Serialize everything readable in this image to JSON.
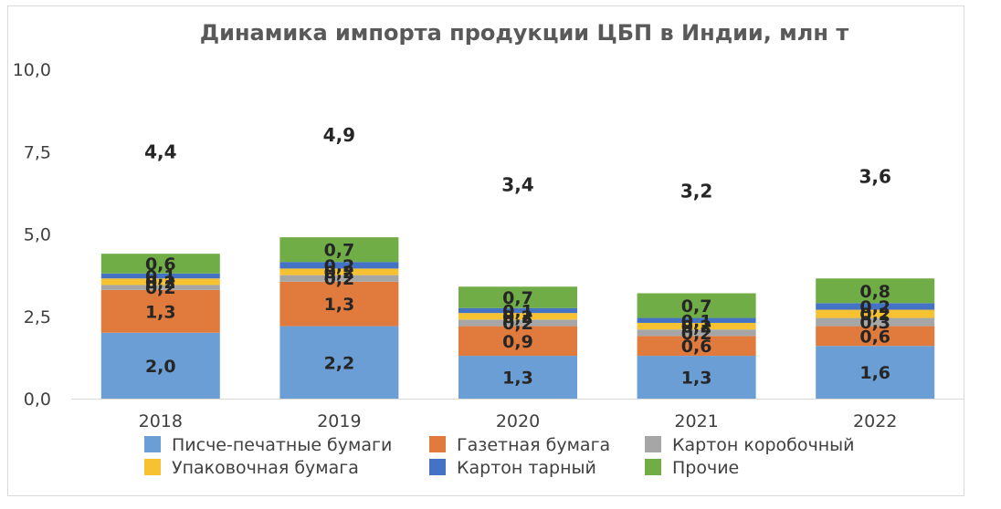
{
  "chart_data": {
    "type": "bar",
    "stacked": true,
    "title": "Динамика импорта продукции ЦБП в Индии, млн т",
    "xlabel": "",
    "ylabel": "",
    "categories": [
      "2018",
      "2019",
      "2020",
      "2021",
      "2022"
    ],
    "ylim": [
      0,
      10
    ],
    "yticks": [
      "0,0",
      "2,5",
      "5,0",
      "7,5",
      "10,0"
    ],
    "grid": false,
    "legend_position": "bottom",
    "series": [
      {
        "name": "Писче-печатные бумаги",
        "color": "#6a9ed4",
        "values": [
          2.0,
          2.2,
          1.3,
          1.3,
          1.6
        ],
        "labels": [
          "2,0",
          "2,2",
          "1,3",
          "1,3",
          "1,6"
        ]
      },
      {
        "name": "Газетная бумага",
        "color": "#e07b3d",
        "values": [
          1.3,
          1.35,
          0.9,
          0.6,
          0.6
        ],
        "labels": [
          "1,3",
          "1,3",
          "0,9",
          "0,6",
          "0,6"
        ]
      },
      {
        "name": "Картон коробочный",
        "color": "#a6a6a6",
        "values": [
          0.15,
          0.2,
          0.2,
          0.2,
          0.25
        ],
        "labels": [
          "0,2",
          "0,2",
          "0,2",
          "0,2",
          "0,3"
        ]
      },
      {
        "name": "Упаковочная бумага",
        "color": "#f6c232",
        "values": [
          0.2,
          0.2,
          0.2,
          0.2,
          0.25
        ],
        "labels": [
          "0,2",
          "0,2",
          "0,2",
          "0,2",
          "0,2"
        ]
      },
      {
        "name": "Картон тарный",
        "color": "#4472c4",
        "values": [
          0.15,
          0.2,
          0.15,
          0.15,
          0.2
        ],
        "labels": [
          "0,1",
          "0,2",
          "0,1",
          "0,1",
          "0,2"
        ]
      },
      {
        "name": "Прочие",
        "color": "#70ad47",
        "values": [
          0.6,
          0.75,
          0.65,
          0.75,
          0.75
        ],
        "labels": [
          "0,6",
          "0,7",
          "0,7",
          "0,7",
          "0,8"
        ]
      }
    ],
    "totals": [
      "4,4",
      "4,9",
      "3,4",
      "3,2",
      "3,6"
    ]
  }
}
